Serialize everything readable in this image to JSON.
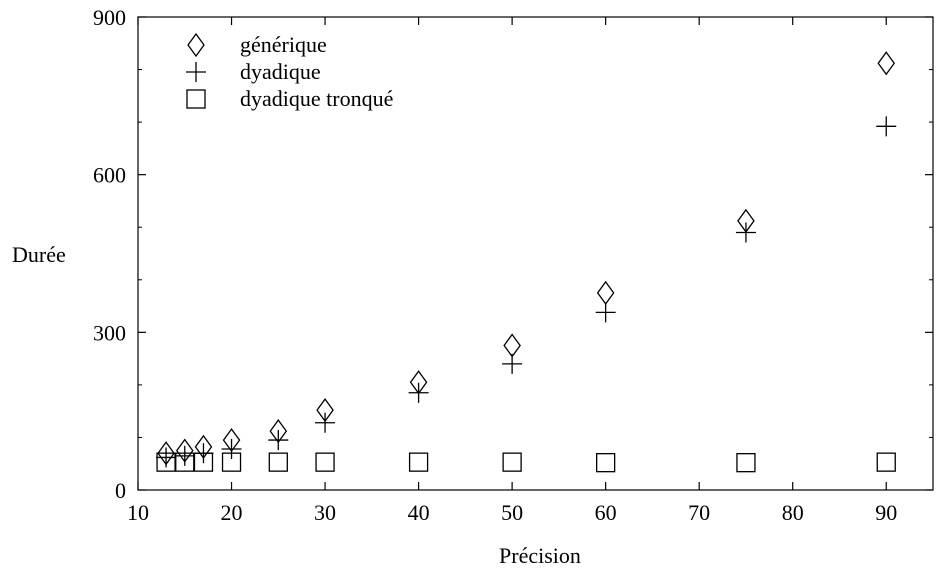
{
  "chart_data": {
    "type": "scatter",
    "xlabel": "Précision",
    "ylabel": "Durée",
    "xlim": [
      10,
      95
    ],
    "ylim": [
      0,
      900
    ],
    "xticks": [
      10,
      20,
      30,
      40,
      50,
      60,
      70,
      80,
      90
    ],
    "yticks": [
      0,
      300,
      600,
      900
    ],
    "grid": false,
    "legend_position": "top-left",
    "series": [
      {
        "name": "générique",
        "marker": "diamond",
        "x": [
          13,
          15,
          17,
          20,
          25,
          30,
          40,
          50,
          60,
          75,
          90
        ],
        "y": [
          70,
          75,
          82,
          95,
          112,
          152,
          205,
          275,
          375,
          512,
          812
        ]
      },
      {
        "name": "dyadique",
        "marker": "plus",
        "x": [
          13,
          15,
          17,
          20,
          25,
          30,
          40,
          50,
          60,
          75,
          90
        ],
        "y": [
          62,
          65,
          70,
          78,
          95,
          128,
          185,
          240,
          338,
          490,
          692
        ]
      },
      {
        "name": "dyadique tronqué",
        "marker": "square",
        "x": [
          13,
          15,
          17,
          20,
          25,
          30,
          40,
          50,
          60,
          75,
          90
        ],
        "y": [
          53,
          53,
          53,
          53,
          53,
          53,
          53,
          53,
          52,
          52,
          53
        ]
      }
    ]
  }
}
